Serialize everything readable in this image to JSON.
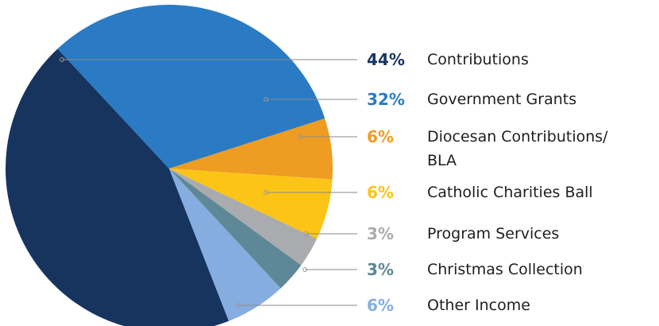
{
  "chart_data": {
    "type": "pie",
    "categories": [
      "Contributions",
      "Government Grants",
      "Diocesan Contributions/ BLA",
      "Catholic Charities Ball",
      "Program Services",
      "Christmas Collection",
      "Other Income"
    ],
    "values": [
      44,
      32,
      6,
      6,
      3,
      3,
      6
    ],
    "value_labels": [
      "44%",
      "32%",
      "6%",
      "6%",
      "3%",
      "3%",
      "6%"
    ],
    "colors": [
      "#17345f",
      "#2a7bc4",
      "#ee9c22",
      "#fcc417",
      "#a9abae",
      "#5e8797",
      "#85ade0"
    ]
  }
}
